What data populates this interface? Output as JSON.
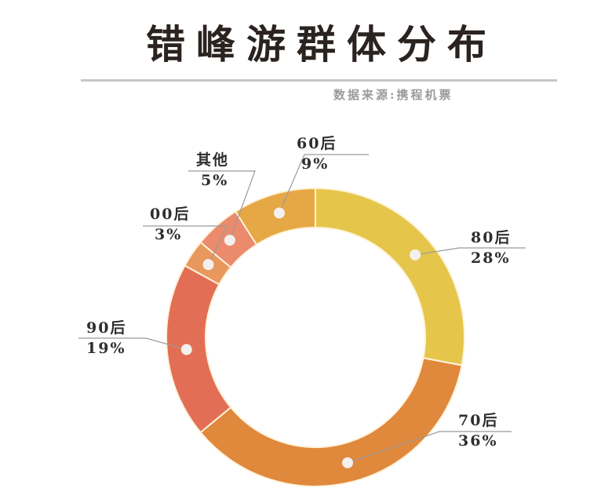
{
  "header": {
    "title": "错峰游群体分布",
    "source": "数据来源:携程机票"
  },
  "colors": {
    "80后": "#e5c64a",
    "70后": "#e0883c",
    "90后": "#e26f55",
    "00后": "#e8985c",
    "其他": "#eb8a6c",
    "60后": "#e6a845",
    "dot": "#f4f0ee",
    "leader": "#9a9a9a"
  },
  "labels": [
    {
      "name": "60后",
      "pct": "9%"
    },
    {
      "name": "其他",
      "pct": "5%"
    },
    {
      "name": "00后",
      "pct": "3%"
    },
    {
      "name": "80后",
      "pct": "28%"
    },
    {
      "name": "90后",
      "pct": "19%"
    },
    {
      "name": "70后",
      "pct": "36%"
    }
  ],
  "chart_data": {
    "type": "pie",
    "variant": "donut",
    "title": "错峰游群体分布",
    "subtitle": "数据来源:携程机票",
    "categories": [
      "80后",
      "70后",
      "90后",
      "00后",
      "其他",
      "60后"
    ],
    "values": [
      28,
      36,
      19,
      3,
      5,
      9
    ],
    "unit": "%",
    "start_angle": "12 o'clock",
    "direction": "clockwise",
    "legend": "none (direct labels with leader lines)"
  }
}
